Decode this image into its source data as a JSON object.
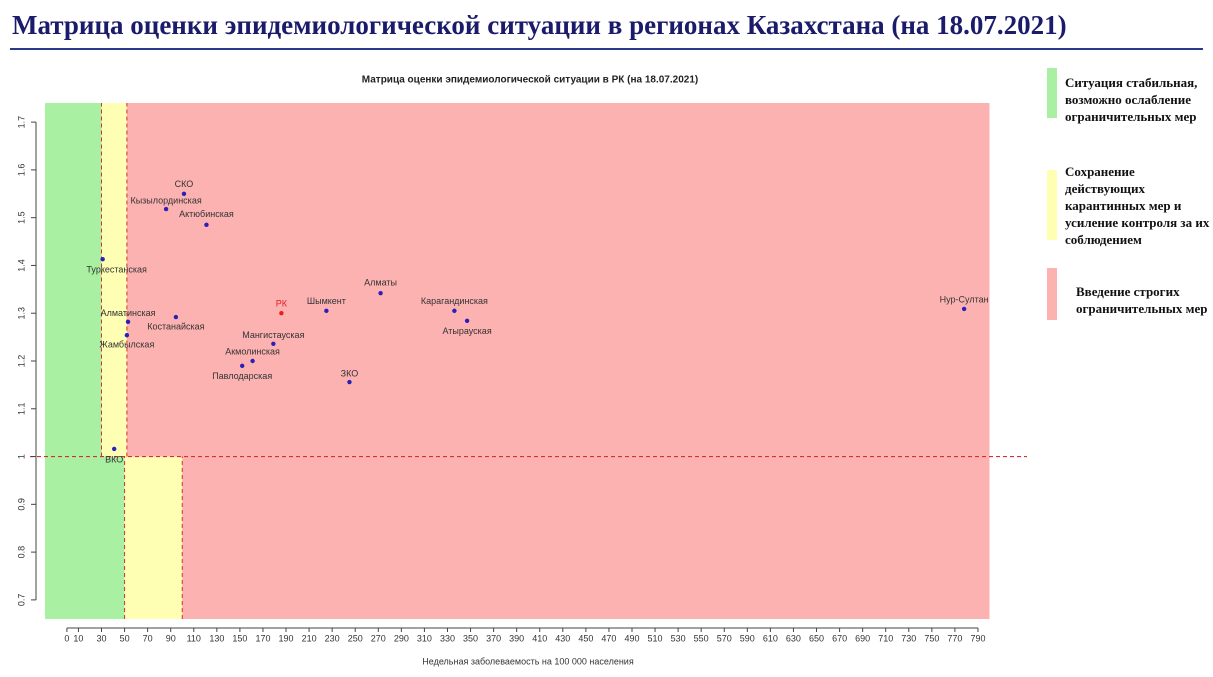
{
  "slide_title": "Матрица оценки эпидемиологической ситуации в регионах Казахстана (на 18.07.2021)",
  "chart_data": {
    "type": "scatter",
    "title": "Матрица оценки эпидемиологической ситуации в РК (на 18.07.2021)",
    "xlabel": "Недельная заболеваемость на 100 000 населения",
    "xlim": [
      -19,
      800
    ],
    "ylim": [
      0.66,
      1.74
    ],
    "xticks": [
      0,
      10,
      30,
      50,
      70,
      90,
      110,
      130,
      150,
      170,
      190,
      210,
      230,
      250,
      270,
      290,
      310,
      330,
      350,
      370,
      390,
      410,
      430,
      450,
      470,
      490,
      510,
      530,
      550,
      570,
      590,
      610,
      630,
      650,
      670,
      690,
      710,
      730,
      750,
      770,
      790
    ],
    "yticks": [
      0.7,
      0.8,
      0.9,
      1.0,
      1.1,
      1.2,
      1.3,
      1.4,
      1.5,
      1.6,
      1.7
    ],
    "zones": [
      {
        "x": [
          -19,
          30
        ],
        "y": [
          1.0,
          1.74
        ],
        "color": "#a9f0a2"
      },
      {
        "x": [
          30,
          52
        ],
        "y": [
          1.0,
          1.74
        ],
        "color": "#ffffb3"
      },
      {
        "x": [
          52,
          800
        ],
        "y": [
          1.0,
          1.74
        ],
        "color": "#fdb2b2"
      },
      {
        "x": [
          -19,
          50
        ],
        "y": [
          0.66,
          1.0
        ],
        "color": "#a9f0a2"
      },
      {
        "x": [
          50,
          100
        ],
        "y": [
          0.66,
          1.0
        ],
        "color": "#ffffb3"
      },
      {
        "x": [
          100,
          800
        ],
        "y": [
          0.66,
          1.0
        ],
        "color": "#fdb2b2"
      }
    ],
    "threshold_y": 1.0,
    "labels": [
      "СКО",
      "Кызылординская",
      "Актюбинская",
      "Туркестанская",
      "Алматы",
      "РК",
      "Шымкент",
      "Карагандинская",
      "Атырауская",
      "Нур-Султан",
      "Алматинская",
      "Костанайская",
      "Жамбылская",
      "Мангистауская",
      "Акмолинская",
      "Павлодарская",
      "ЗКО",
      "ВКО"
    ],
    "x": [
      101.5,
      86,
      121,
      31,
      272,
      186,
      225,
      336,
      347,
      778,
      53,
      94.5,
      52,
      179,
      161,
      152,
      245,
      41
    ],
    "y": [
      1.55,
      1.518,
      1.485,
      1.413,
      1.342,
      1.3,
      1.305,
      1.305,
      1.284,
      1.309,
      1.282,
      1.292,
      1.254,
      1.236,
      1.2,
      1.19,
      1.156,
      1.016
    ],
    "point_colors": [
      "#2a1fb8",
      "#2a1fb8",
      "#2a1fb8",
      "#2a1fb8",
      "#2a1fb8",
      "#e8201c",
      "#2a1fb8",
      "#2a1fb8",
      "#2a1fb8",
      "#2a1fb8",
      "#2a1fb8",
      "#2a1fb8",
      "#2a1fb8",
      "#2a1fb8",
      "#2a1fb8",
      "#2a1fb8",
      "#2a1fb8",
      "#2a1fb8"
    ],
    "legend": [
      {
        "label": "Ситуация стабильная, возможно ослабление ограничительных мер",
        "color": "#a9f0a2"
      },
      {
        "label": "Сохранение действующих карантинных мер и усиление контроля за их соблюдением",
        "color": "#ffffb3"
      },
      {
        "label": "Введение строгих ограничительных мер",
        "color": "#fdb2b2"
      }
    ]
  }
}
